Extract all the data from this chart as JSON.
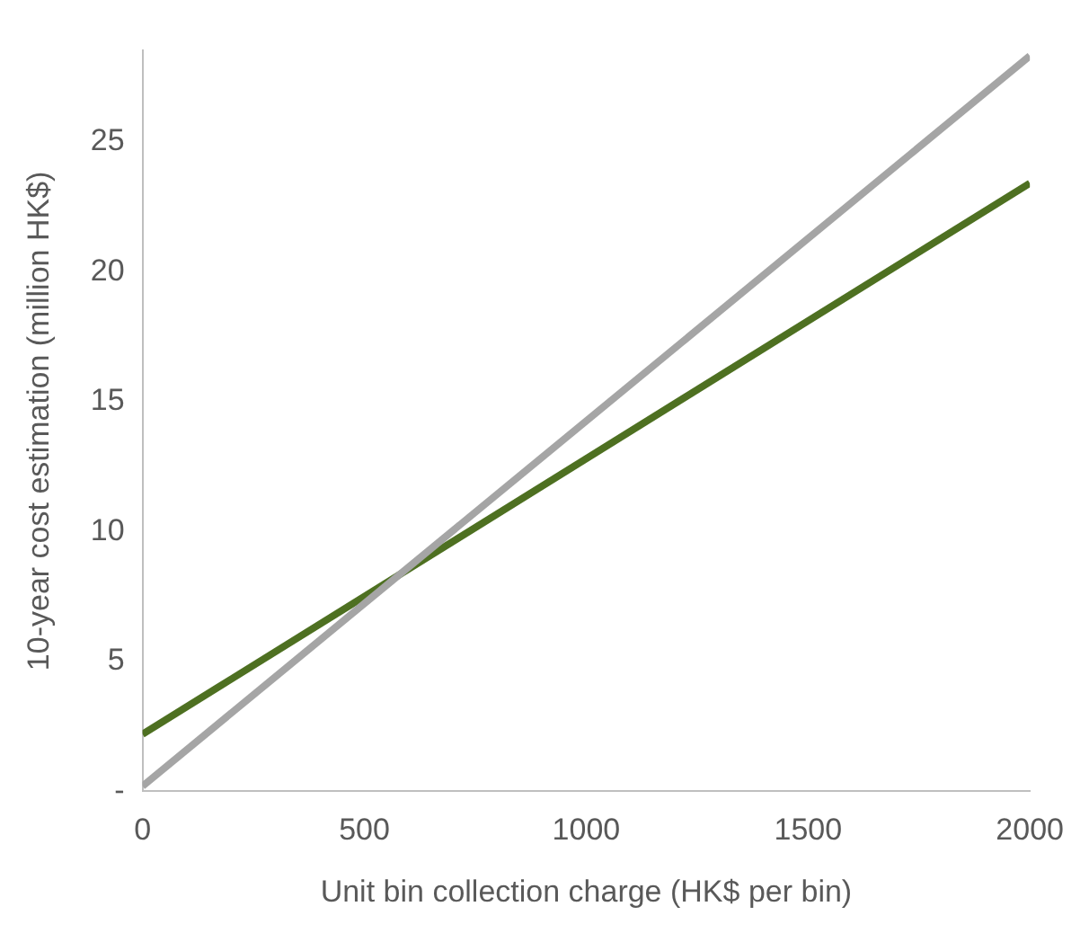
{
  "chart_data": {
    "type": "line",
    "xlabel": "Unit bin collection charge (HK$ per bin)",
    "ylabel": "10-year cost estimation (million HK$)",
    "x": [
      0,
      2000
    ],
    "series": [
      {
        "color": "#a5a5a5",
        "values": [
          0.2,
          28.3
        ]
      },
      {
        "color": "#4e7021",
        "values": [
          2.2,
          23.4
        ]
      }
    ],
    "xlim": [
      0,
      2000
    ],
    "xticks": [
      0,
      500,
      1000,
      1500,
      2000
    ],
    "ylim": [
      0,
      28.5
    ],
    "yticks": [
      {
        "value": 0,
        "label": "-"
      },
      5,
      10,
      15,
      20,
      25
    ],
    "grid": false,
    "legend": false,
    "marker": "none",
    "line_style": "solid"
  }
}
